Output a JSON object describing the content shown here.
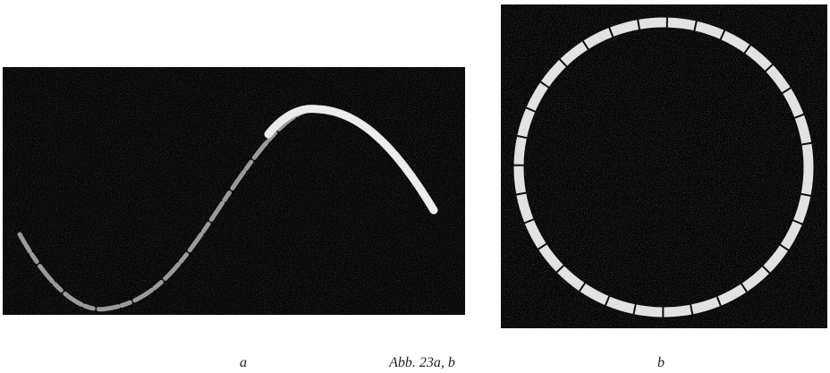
{
  "figure": {
    "panels": [
      {
        "label": "a"
      },
      {
        "label": "b"
      }
    ],
    "caption": "Abb. 23a, b"
  }
}
